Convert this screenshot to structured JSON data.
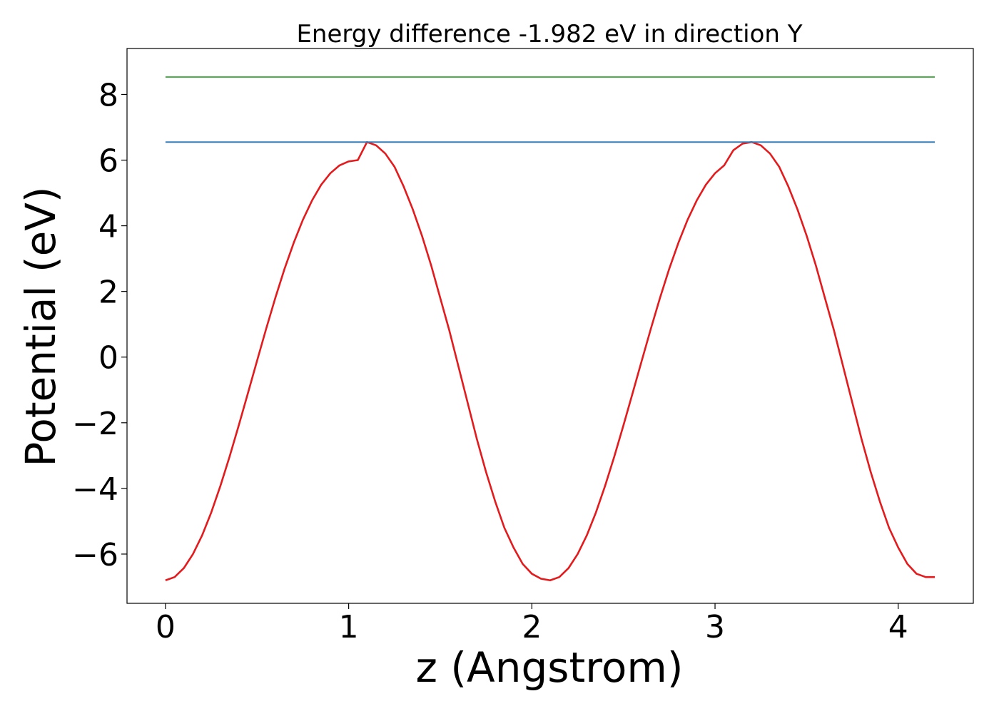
{
  "chart_data": {
    "type": "line",
    "title": "Energy difference -1.982 eV in direction Y",
    "xlabel": "z (Angstrom)",
    "ylabel": "Potential (eV)",
    "xlim": [
      -0.21,
      4.41
    ],
    "ylim": [
      -7.5,
      9.4
    ],
    "x_ticks": [
      0,
      1,
      2,
      3,
      4
    ],
    "x_tick_labels": [
      "0",
      "1",
      "2",
      "3",
      "4"
    ],
    "y_ticks": [
      -6,
      -4,
      -2,
      0,
      2,
      4,
      6,
      8
    ],
    "y_tick_labels": [
      "−6",
      "−4",
      "−2",
      "0",
      "2",
      "4",
      "6",
      "8"
    ],
    "grid": false,
    "legend": "none",
    "series": [
      {
        "style": "curve",
        "color": "#e41a1c",
        "x": [
          0.0,
          0.05,
          0.1,
          0.15,
          0.2,
          0.25,
          0.3,
          0.35,
          0.4,
          0.45,
          0.5,
          0.55,
          0.6,
          0.65,
          0.7,
          0.75,
          0.8,
          0.85,
          0.9,
          0.95,
          1.0,
          1.05,
          1.1,
          1.15,
          1.2,
          1.25,
          1.3,
          1.35,
          1.4,
          1.45,
          1.5,
          1.55,
          1.6,
          1.65,
          1.7,
          1.75,
          1.8,
          1.85,
          1.9,
          1.95,
          2.0,
          2.05,
          2.1,
          2.15,
          2.2,
          2.25,
          2.3,
          2.35,
          2.4,
          2.45,
          2.5,
          2.55,
          2.6,
          2.65,
          2.7,
          2.75,
          2.8,
          2.85,
          2.9,
          2.95,
          3.0,
          3.05,
          3.1,
          3.15,
          3.2,
          3.25,
          3.3,
          3.35,
          3.4,
          3.45,
          3.5,
          3.55,
          3.6,
          3.65,
          3.7,
          3.75,
          3.8,
          3.85,
          3.9,
          3.95,
          4.0,
          4.05,
          4.1,
          4.15,
          4.2
        ],
        "y": [
          -6.8,
          -6.7,
          -6.43,
          -6.0,
          -5.43,
          -4.73,
          -3.92,
          -3.03,
          -2.08,
          -1.1,
          -0.11,
          0.87,
          1.81,
          2.69,
          3.48,
          4.18,
          4.77,
          5.25,
          5.6,
          5.84,
          5.96,
          6.0,
          6.55,
          6.45,
          6.2,
          5.8,
          5.2,
          4.5,
          3.7,
          2.8,
          1.8,
          0.8,
          -0.3,
          -1.4,
          -2.5,
          -3.5,
          -4.4,
          -5.2,
          -5.8,
          -6.3,
          -6.6,
          -6.75,
          -6.8,
          -6.7,
          -6.43,
          -6.0,
          -5.43,
          -4.73,
          -3.92,
          -3.03,
          -2.08,
          -1.1,
          -0.11,
          0.87,
          1.81,
          2.69,
          3.48,
          4.18,
          4.77,
          5.25,
          5.6,
          5.84,
          6.3,
          6.5,
          6.55,
          6.45,
          6.2,
          5.8,
          5.2,
          4.5,
          3.7,
          2.8,
          1.8,
          0.8,
          -0.3,
          -1.4,
          -2.5,
          -3.5,
          -4.4,
          -5.2,
          -5.8,
          -6.3,
          -6.6,
          -6.7,
          -6.7
        ]
      },
      {
        "style": "horizontal-line",
        "color": "#377eb8",
        "x": [
          0.0,
          4.2
        ],
        "y": [
          6.55,
          6.55
        ]
      },
      {
        "style": "horizontal-line",
        "color": "#4daf4a",
        "x": [
          0.0,
          4.2
        ],
        "y": [
          8.53,
          8.53
        ]
      }
    ]
  }
}
